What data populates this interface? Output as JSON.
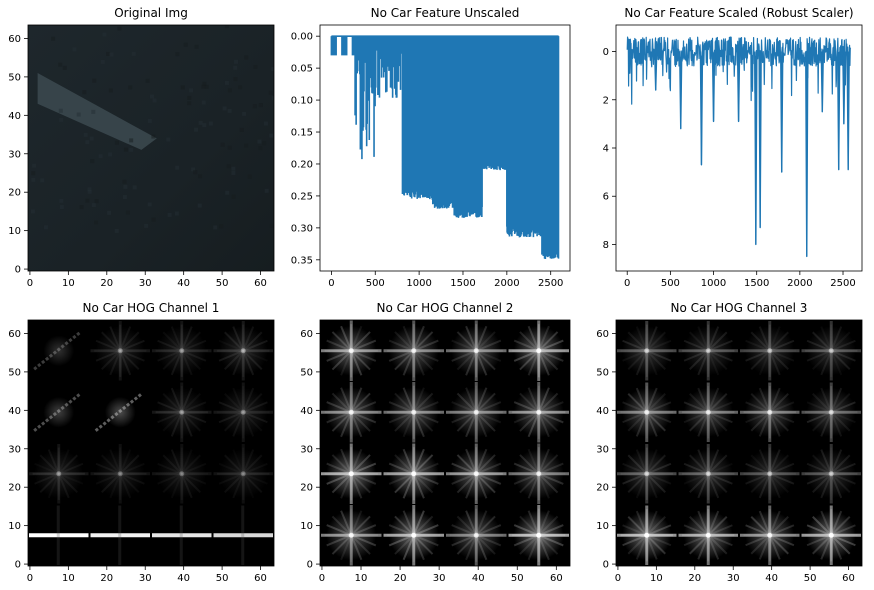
{
  "chart_data": [
    {
      "type": "image",
      "title": "Original Img",
      "image": "original",
      "xticks": [
        0,
        10,
        20,
        30,
        40,
        50,
        60
      ],
      "yticks": [
        0,
        10,
        20,
        30,
        40,
        50,
        60
      ],
      "xlim": [
        -0.5,
        63.5
      ],
      "ylim": [
        63.5,
        -0.5
      ],
      "colors": {
        "sky": "#8f978a",
        "road": "#1c2428",
        "lane_marking": "#3c4a50"
      }
    },
    {
      "type": "line",
      "title": "No Car Feature Unscaled",
      "xticks": [
        0,
        500,
        1000,
        1500,
        2000,
        2500
      ],
      "yticks": [
        0.0,
        0.05,
        0.1,
        0.15,
        0.2,
        0.25,
        0.3,
        0.35
      ],
      "ytick_labels": [
        "0.00",
        "0.05",
        "0.10",
        "0.15",
        "0.20",
        "0.25",
        "0.30",
        "0.35"
      ],
      "xlim": [
        -130,
        2720
      ],
      "ylim": [
        -0.0175,
        0.3675
      ],
      "color": "#1f77b4",
      "series": [
        {
          "segments": [
            {
              "x_start": 0,
              "x_end": 270,
              "low": 0.0,
              "high": 0.03,
              "style": "sparse"
            },
            {
              "x_start": 270,
              "x_end": 500,
              "low": 0.0,
              "high": 0.21,
              "style": "spiky"
            },
            {
              "x_start": 500,
              "x_end": 810,
              "low": 0.0,
              "high": 0.1,
              "style": "spiky"
            },
            {
              "x_start": 810,
              "x_end": 900,
              "low": 0.0,
              "high": 0.25,
              "style": "block"
            },
            {
              "x_start": 900,
              "x_end": 1150,
              "low": 0.0,
              "high": 0.255,
              "style": "block"
            },
            {
              "x_start": 1150,
              "x_end": 1400,
              "low": 0.0,
              "high": 0.27,
              "style": "block"
            },
            {
              "x_start": 1400,
              "x_end": 1720,
              "low": 0.0,
              "high": 0.285,
              "style": "block"
            },
            {
              "x_start": 1720,
              "x_end": 2000,
              "low": 0.0,
              "high": 0.21,
              "style": "block"
            },
            {
              "x_start": 2000,
              "x_end": 2400,
              "low": 0.0,
              "high": 0.315,
              "style": "block"
            },
            {
              "x_start": 2400,
              "x_end": 2590,
              "low": 0.0,
              "high": 0.35,
              "style": "block"
            }
          ],
          "peak": {
            "x": 2530,
            "y": 0.35
          }
        }
      ]
    },
    {
      "type": "line",
      "title": "No Car Feature Scaled (Robust Scaler)",
      "xticks": [
        0,
        500,
        1000,
        1500,
        2000,
        2500
      ],
      "yticks": [
        0,
        2,
        4,
        6,
        8
      ],
      "xlim": [
        -130,
        2720
      ],
      "ylim": [
        -1.1,
        9.1
      ],
      "color": "#1f77b4",
      "series": [
        {
          "baseline_low": -0.6,
          "baseline_high": 0.6,
          "peaks": [
            {
              "x": 30,
              "y": 0.9
            },
            {
              "x": 330,
              "y": 1.6
            },
            {
              "x": 620,
              "y": 3.2
            },
            {
              "x": 860,
              "y": 4.7
            },
            {
              "x": 1000,
              "y": 2.9
            },
            {
              "x": 1290,
              "y": 2.9
            },
            {
              "x": 1490,
              "y": 8.0
            },
            {
              "x": 1540,
              "y": 7.3
            },
            {
              "x": 1790,
              "y": 5.0
            },
            {
              "x": 2080,
              "y": 8.5
            },
            {
              "x": 2260,
              "y": 2.5
            },
            {
              "x": 2450,
              "y": 4.9
            },
            {
              "x": 2510,
              "y": 3.0
            },
            {
              "x": 2560,
              "y": 4.9
            }
          ]
        }
      ]
    },
    {
      "type": "image",
      "title": "No Car HOG Channel 1",
      "image": "hog",
      "xticks": [
        0,
        10,
        20,
        30,
        40,
        50,
        60
      ],
      "yticks": [
        0,
        10,
        20,
        30,
        40,
        50,
        60
      ],
      "xlim": [
        -0.5,
        63.5
      ],
      "ylim": [
        63.5,
        -0.5
      ],
      "cell_grid": 4,
      "cells": [
        [
          {
            "h": 1.0
          },
          {
            "h": 0.95
          },
          {
            "h": 0.9
          },
          {
            "h": 0.85
          }
        ],
        [
          {
            "c": 0.25
          },
          {
            "c": 0.2
          },
          {
            "c": 0.2
          },
          {
            "c": 0.2
          }
        ],
        [
          {
            "d": 0.45
          },
          {
            "d": 0.55
          },
          {
            "c": 0.25
          },
          {
            "c": 0.25
          }
        ],
        [
          {
            "d": 0.35
          },
          {
            "c": 0.25
          },
          {
            "c": 0.25
          },
          {
            "c": 0.3
          }
        ]
      ]
    },
    {
      "type": "image",
      "title": "No Car HOG Channel 2",
      "image": "hog",
      "xticks": [
        0,
        10,
        20,
        30,
        40,
        50,
        60
      ],
      "yticks": [
        0,
        10,
        20,
        30,
        40,
        50,
        60
      ],
      "xlim": [
        -0.5,
        63.5
      ],
      "ylim": [
        63.5,
        -0.5
      ],
      "cell_grid": 4,
      "cells": [
        [
          {
            "s": 0.7
          },
          {
            "s": 0.85
          },
          {
            "s": 0.6
          },
          {
            "s": 0.9
          }
        ],
        [
          {
            "s": 0.85
          },
          {
            "s": 0.8
          },
          {
            "s": 0.7
          },
          {
            "s": 0.6
          }
        ],
        [
          {
            "s": 0.65
          },
          {
            "s": 0.6
          },
          {
            "s": 0.6
          },
          {
            "s": 0.65
          }
        ],
        [
          {
            "s": 0.7
          },
          {
            "s": 0.6
          },
          {
            "s": 0.6
          },
          {
            "s": 0.8
          }
        ]
      ]
    },
    {
      "type": "image",
      "title": "No Car HOG Channel 3",
      "image": "hog",
      "xticks": [
        0,
        10,
        20,
        30,
        40,
        50,
        60
      ],
      "yticks": [
        0,
        10,
        20,
        30,
        40,
        50,
        60
      ],
      "xlim": [
        -0.5,
        63.5
      ],
      "ylim": [
        63.5,
        -0.5
      ],
      "cell_grid": 4,
      "cells": [
        [
          {
            "s": 0.85
          },
          {
            "s": 0.8
          },
          {
            "s": 0.7
          },
          {
            "s": 0.85
          }
        ],
        [
          {
            "s": 0.4
          },
          {
            "s": 0.4
          },
          {
            "s": 0.35
          },
          {
            "s": 0.35
          }
        ],
        [
          {
            "s": 0.6
          },
          {
            "s": 0.55
          },
          {
            "s": 0.55
          },
          {
            "s": 0.45
          }
        ],
        [
          {
            "s": 0.4
          },
          {
            "s": 0.35
          },
          {
            "s": 0.35
          },
          {
            "s": 0.35
          }
        ]
      ]
    }
  ]
}
